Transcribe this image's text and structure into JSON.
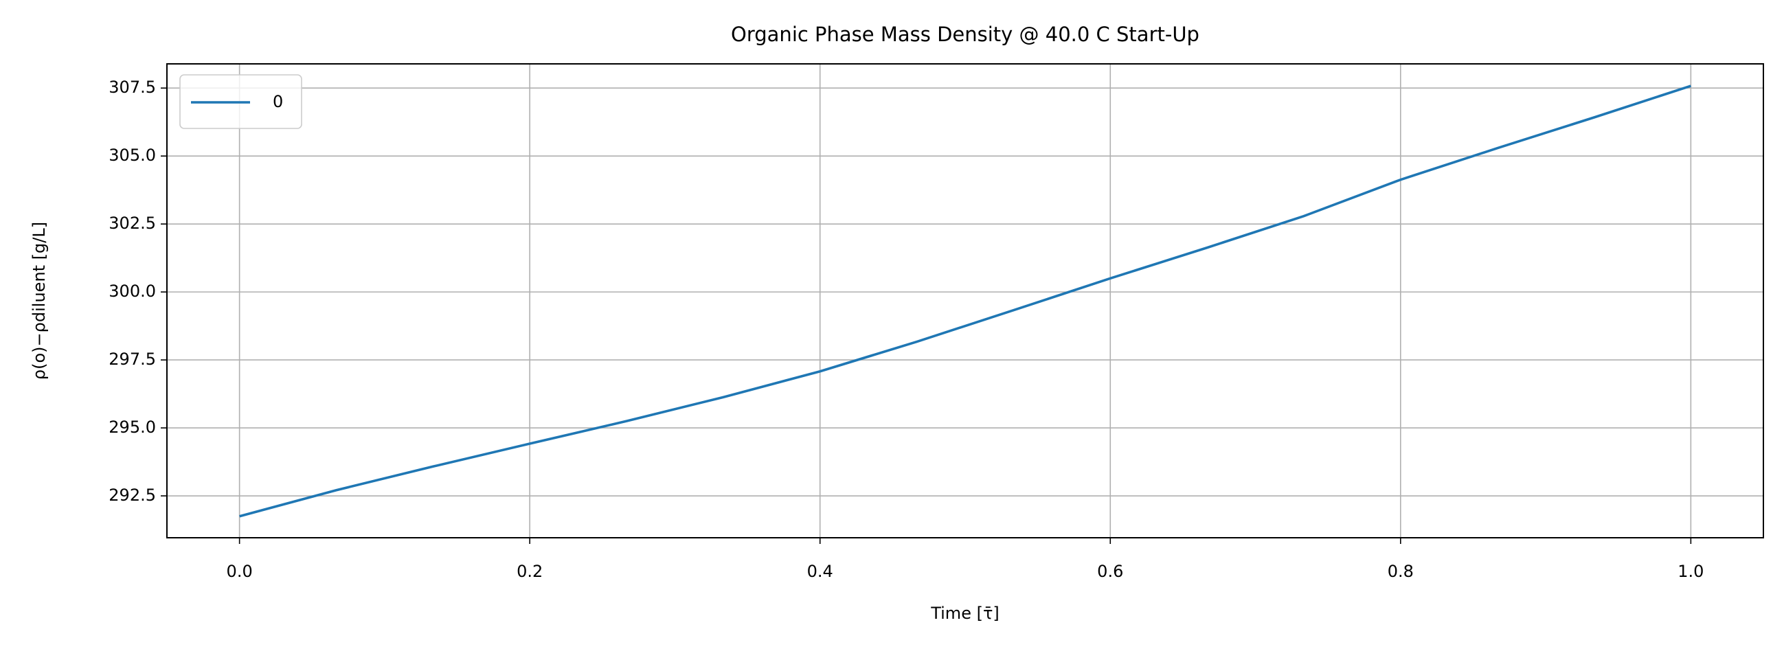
{
  "chart_data": {
    "type": "line",
    "title": "Organic Phase Mass Density @ 40.0 C Start-Up",
    "xlabel": "Time [τ̄]",
    "ylabel": "ρ(o)−ρdiluent [g/L]",
    "x": [
      0,
      0.0667,
      0.1333,
      0.2,
      0.2667,
      0.3333,
      0.4,
      0.4667,
      0.5333,
      0.6,
      0.6667,
      0.7333,
      0.8,
      0.8667,
      0.9333,
      1.0
    ],
    "series": [
      {
        "name": "0",
        "color": "#1f77b4",
        "values": [
          291.75,
          292.71,
          293.58,
          294.42,
          295.25,
          296.13,
          297.08,
          298.17,
          299.33,
          300.5,
          301.63,
          302.79,
          304.13,
          305.29,
          306.42,
          307.58
        ]
      }
    ],
    "xlim": [
      -0.05,
      1.05
    ],
    "ylim": [
      290.96,
      308.39
    ],
    "xticks": [
      {
        "value": 0,
        "label": "0.0"
      },
      0.2,
      0.4,
      0.6,
      0.8,
      {
        "value": 1,
        "label": "1.0"
      }
    ],
    "yticks": [
      292.5,
      {
        "value": 295,
        "label": "295.0"
      },
      297.5,
      {
        "value": 300,
        "label": "300.0"
      },
      302.5,
      {
        "value": 305,
        "label": "305.0"
      },
      307.5
    ],
    "grid": true,
    "legend": "upper left"
  }
}
